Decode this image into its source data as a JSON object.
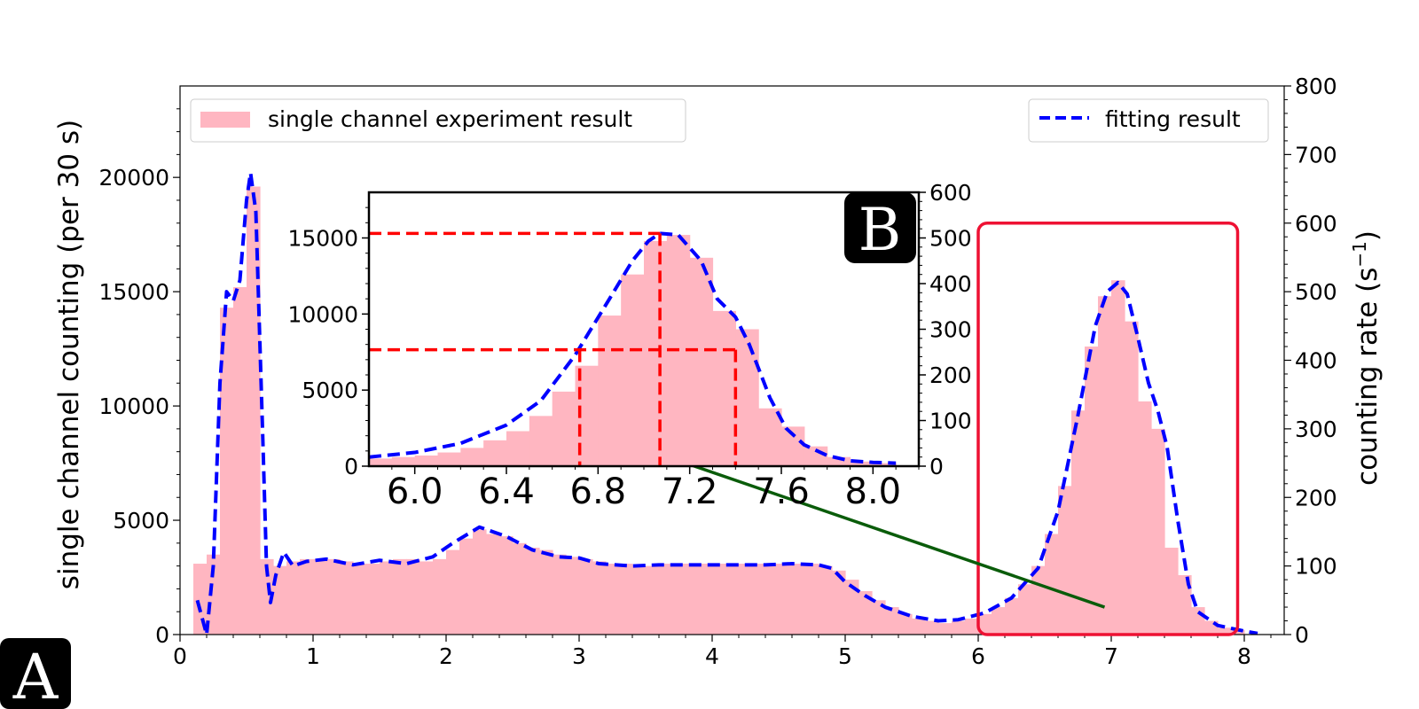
{
  "chart_data": [
    {
      "id": "main",
      "type": "bar",
      "ylabel": "single channel counting (per 30 s)",
      "y2label": "counting rate (s",
      "y2label_sup": "−1",
      "y2label_close": ")",
      "xlim": [
        0,
        8.3
      ],
      "ylim": [
        0,
        24000
      ],
      "y2lim": [
        0,
        800
      ],
      "xticks": [
        0,
        1,
        2,
        3,
        4,
        5,
        6,
        7,
        8
      ],
      "yticks": [
        0,
        5000,
        10000,
        15000,
        20000
      ],
      "y2ticks": [
        0,
        100,
        200,
        300,
        400,
        500,
        600,
        700,
        800
      ],
      "bin_width": 0.1,
      "bins": [
        [
          0.1,
          3100
        ],
        [
          0.2,
          3500
        ],
        [
          0.3,
          14300
        ],
        [
          0.4,
          15200
        ],
        [
          0.5,
          19600
        ],
        [
          0.6,
          3300
        ],
        [
          0.7,
          3000
        ],
        [
          0.8,
          3200
        ],
        [
          0.9,
          3300
        ],
        [
          1.0,
          3300
        ],
        [
          1.1,
          3300
        ],
        [
          1.2,
          3200
        ],
        [
          1.3,
          3100
        ],
        [
          1.4,
          3100
        ],
        [
          1.5,
          3200
        ],
        [
          1.6,
          3300
        ],
        [
          1.7,
          3300
        ],
        [
          1.8,
          3200
        ],
        [
          1.9,
          3300
        ],
        [
          2.0,
          3700
        ],
        [
          2.1,
          4200
        ],
        [
          2.2,
          4600
        ],
        [
          2.3,
          4400
        ],
        [
          2.4,
          4300
        ],
        [
          2.5,
          4000
        ],
        [
          2.6,
          3800
        ],
        [
          2.7,
          3700
        ],
        [
          2.8,
          3500
        ],
        [
          2.9,
          3400
        ],
        [
          3.0,
          3300
        ],
        [
          3.1,
          3200
        ],
        [
          3.2,
          3100
        ],
        [
          3.3,
          3100
        ],
        [
          3.4,
          3000
        ],
        [
          3.5,
          3000
        ],
        [
          3.6,
          3100
        ],
        [
          3.7,
          3100
        ],
        [
          3.8,
          3100
        ],
        [
          3.9,
          3100
        ],
        [
          4.0,
          3100
        ],
        [
          4.1,
          3100
        ],
        [
          4.2,
          3100
        ],
        [
          4.3,
          3100
        ],
        [
          4.4,
          3100
        ],
        [
          4.5,
          3100
        ],
        [
          4.6,
          3100
        ],
        [
          4.7,
          3100
        ],
        [
          4.8,
          3000
        ],
        [
          4.9,
          2800
        ],
        [
          5.0,
          2400
        ],
        [
          5.1,
          1900
        ],
        [
          5.2,
          1500
        ],
        [
          5.3,
          1200
        ],
        [
          5.4,
          900
        ],
        [
          5.5,
          700
        ],
        [
          5.6,
          600
        ],
        [
          5.7,
          500
        ],
        [
          5.8,
          600
        ],
        [
          5.9,
          700
        ],
        [
          6.0,
          900
        ],
        [
          6.1,
          1200
        ],
        [
          6.2,
          1600
        ],
        [
          6.3,
          2200
        ],
        [
          6.4,
          3000
        ],
        [
          6.5,
          4400
        ],
        [
          6.6,
          6500
        ],
        [
          6.7,
          9800
        ],
        [
          6.8,
          12600
        ],
        [
          6.9,
          14800
        ],
        [
          7.0,
          15500
        ],
        [
          7.1,
          13700
        ],
        [
          7.2,
          10200
        ],
        [
          7.3,
          9000
        ],
        [
          7.4,
          3800
        ],
        [
          7.5,
          2600
        ],
        [
          7.6,
          1200
        ],
        [
          7.7,
          600
        ],
        [
          7.8,
          300
        ],
        [
          7.9,
          200
        ]
      ],
      "fit": [
        [
          0.13,
          1500
        ],
        [
          0.2,
          0
        ],
        [
          0.25,
          3000
        ],
        [
          0.3,
          11000
        ],
        [
          0.35,
          15000
        ],
        [
          0.4,
          14600
        ],
        [
          0.45,
          15500
        ],
        [
          0.5,
          19000
        ],
        [
          0.53,
          20200
        ],
        [
          0.57,
          18500
        ],
        [
          0.62,
          9000
        ],
        [
          0.65,
          3000
        ],
        [
          0.68,
          1400
        ],
        [
          0.72,
          2600
        ],
        [
          0.78,
          3600
        ],
        [
          0.85,
          3000
        ],
        [
          0.95,
          3200
        ],
        [
          1.1,
          3300
        ],
        [
          1.3,
          3050
        ],
        [
          1.5,
          3250
        ],
        [
          1.7,
          3100
        ],
        [
          1.9,
          3400
        ],
        [
          2.05,
          4000
        ],
        [
          2.25,
          4700
        ],
        [
          2.45,
          4300
        ],
        [
          2.65,
          3700
        ],
        [
          2.85,
          3400
        ],
        [
          3.0,
          3350
        ],
        [
          3.15,
          3100
        ],
        [
          3.4,
          3000
        ],
        [
          3.6,
          3050
        ],
        [
          3.8,
          3050
        ],
        [
          4.0,
          3050
        ],
        [
          4.2,
          3050
        ],
        [
          4.4,
          3050
        ],
        [
          4.6,
          3100
        ],
        [
          4.8,
          3050
        ],
        [
          4.9,
          2900
        ],
        [
          5.0,
          2300
        ],
        [
          5.15,
          1700
        ],
        [
          5.3,
          1200
        ],
        [
          5.5,
          800
        ],
        [
          5.7,
          600
        ],
        [
          5.85,
          650
        ],
        [
          6.05,
          950
        ],
        [
          6.25,
          1600
        ],
        [
          6.45,
          2900
        ],
        [
          6.6,
          5400
        ],
        [
          6.75,
          9600
        ],
        [
          6.88,
          13500
        ],
        [
          6.97,
          15000
        ],
        [
          7.05,
          15400
        ],
        [
          7.12,
          14900
        ],
        [
          7.2,
          13000
        ],
        [
          7.28,
          11000
        ],
        [
          7.35,
          9800
        ],
        [
          7.42,
          8200
        ],
        [
          7.5,
          5000
        ],
        [
          7.58,
          2200
        ],
        [
          7.65,
          1000
        ],
        [
          7.8,
          400
        ],
        [
          8.0,
          150
        ],
        [
          8.1,
          50
        ]
      ],
      "legend": [
        {
          "label": "single channel experiment result",
          "color": "#ffb6c1",
          "kind": "patch"
        },
        {
          "label": "fitting result",
          "color": "#0000ff",
          "kind": "dashed-line"
        }
      ],
      "highlight_box": {
        "x": [
          6.0,
          7.95
        ],
        "y": [
          0,
          18000
        ],
        "color": "#ee1133"
      },
      "connector": {
        "from": [
          3.65,
          7800
        ],
        "to": [
          6.95,
          1200
        ],
        "color": "#0a5c0a"
      },
      "badge": "A"
    },
    {
      "id": "inset",
      "type": "bar",
      "xlim": [
        5.8,
        8.2
      ],
      "ylim": [
        0,
        18000
      ],
      "y2lim": [
        0,
        600
      ],
      "xticks": [
        6.0,
        6.4,
        6.8,
        7.2,
        7.6,
        8.0
      ],
      "xtick_labels": [
        "6.0",
        "6.4",
        "6.8",
        "7.2",
        "7.6",
        "8.0"
      ],
      "yticks": [
        0,
        5000,
        10000,
        15000
      ],
      "y2ticks": [
        0,
        100,
        200,
        300,
        400,
        500,
        600
      ],
      "bin_width": 0.1,
      "bins": [
        [
          5.8,
          500
        ],
        [
          5.9,
          600
        ],
        [
          6.0,
          700
        ],
        [
          6.1,
          900
        ],
        [
          6.2,
          1200
        ],
        [
          6.3,
          1700
        ],
        [
          6.4,
          2300
        ],
        [
          6.5,
          3300
        ],
        [
          6.6,
          4900
        ],
        [
          6.7,
          6600
        ],
        [
          6.8,
          9900
        ],
        [
          6.9,
          12600
        ],
        [
          7.0,
          14800
        ],
        [
          7.1,
          15200
        ],
        [
          7.2,
          13700
        ],
        [
          7.3,
          10200
        ],
        [
          7.4,
          9000
        ],
        [
          7.5,
          3800
        ],
        [
          7.6,
          2600
        ],
        [
          7.7,
          1300
        ],
        [
          7.8,
          600
        ],
        [
          7.9,
          300
        ],
        [
          8.0,
          200
        ]
      ],
      "fit": [
        [
          5.8,
          600
        ],
        [
          6.0,
          900
        ],
        [
          6.2,
          1500
        ],
        [
          6.4,
          2700
        ],
        [
          6.55,
          4300
        ],
        [
          6.7,
          7300
        ],
        [
          6.85,
          11000
        ],
        [
          6.95,
          13500
        ],
        [
          7.02,
          14800
        ],
        [
          7.07,
          15300
        ],
        [
          7.15,
          15200
        ],
        [
          7.25,
          13500
        ],
        [
          7.32,
          11000
        ],
        [
          7.4,
          9800
        ],
        [
          7.46,
          8000
        ],
        [
          7.55,
          4500
        ],
        [
          7.62,
          2500
        ],
        [
          7.7,
          1400
        ],
        [
          7.8,
          700
        ],
        [
          7.9,
          350
        ],
        [
          8.0,
          250
        ],
        [
          8.1,
          200
        ]
      ],
      "peak": {
        "x": 7.07,
        "y": 15300
      },
      "half_max": {
        "y": 7650,
        "x_left": 6.72,
        "x_right": 7.4
      },
      "marker_color": "#ff0000",
      "badge": "B"
    }
  ]
}
